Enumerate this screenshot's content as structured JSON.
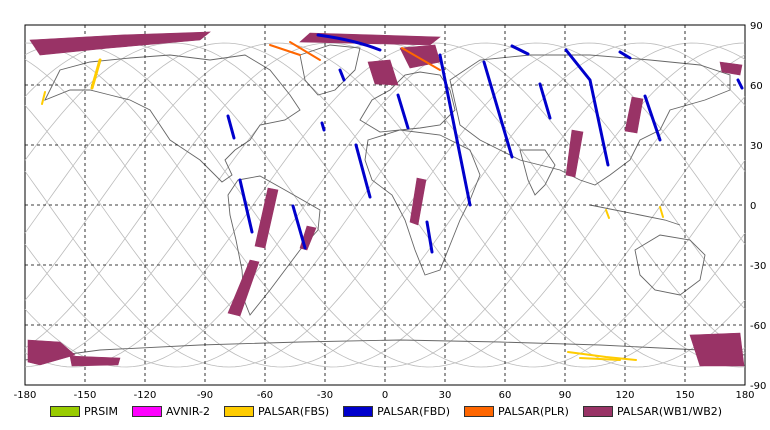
{
  "map": {
    "x_ticks": [
      "-180",
      "-150",
      "-120",
      "-90",
      "-60",
      "-30",
      "0",
      "30",
      "60",
      "90",
      "120",
      "150",
      "180"
    ],
    "y_ticks": [
      "90",
      "60",
      "30",
      "0",
      "-30",
      "-60",
      "-90"
    ]
  },
  "legend": [
    {
      "label": "PRSIM",
      "color": "#99cc00"
    },
    {
      "label": "AVNIR-2",
      "color": "#ff00ff"
    },
    {
      "label": "PALSAR(FBS)",
      "color": "#ffcc00"
    },
    {
      "label": "PALSAR(FBD)",
      "color": "#0000cc"
    },
    {
      "label": "PALSAR(PLR)",
      "color": "#ff6600"
    },
    {
      "label": "PALSAR(WB1/WB2)",
      "color": "#993366"
    }
  ],
  "colors": {
    "fbs": "#ffcc00",
    "fbd": "#0000cc",
    "plr": "#ff6600",
    "wb": "#993366",
    "coast": "#555555",
    "orbit": "#bbbbbb",
    "grid": "#000000"
  }
}
